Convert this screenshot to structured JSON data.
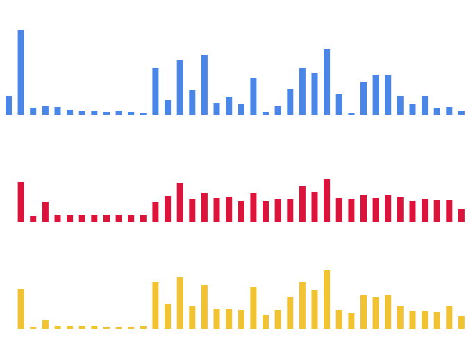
{
  "chart_data": [
    {
      "type": "bar",
      "color": "#4a86e8",
      "grid": false,
      "legend": "none",
      "ylim": [
        0,
        122
      ],
      "values": [
        27,
        122,
        10,
        13,
        11,
        7,
        6,
        5,
        4,
        5,
        4,
        3,
        67,
        21,
        78,
        36,
        86,
        17,
        26,
        15,
        53,
        4,
        12,
        37,
        67,
        60,
        94,
        30,
        2,
        47,
        57,
        57,
        27,
        15,
        27,
        10,
        11,
        5
      ]
    },
    {
      "type": "bar",
      "color": "#dc143c",
      "grid": false,
      "legend": "none",
      "ylim": [
        0,
        62
      ],
      "values": [
        0,
        58,
        9,
        30,
        11,
        11,
        11,
        11,
        11,
        11,
        11,
        11,
        29,
        38,
        57,
        34,
        43,
        35,
        37,
        31,
        43,
        31,
        33,
        33,
        52,
        44,
        62,
        35,
        33,
        40,
        35,
        40,
        36,
        31,
        34,
        32,
        32,
        19
      ]
    },
    {
      "type": "bar",
      "color": "#f1c232",
      "grid": false,
      "legend": "none",
      "ylim": [
        0,
        84
      ],
      "values": [
        0,
        57,
        3,
        12,
        4,
        4,
        4,
        4,
        3,
        3,
        3,
        4,
        67,
        36,
        74,
        33,
        63,
        29,
        29,
        27,
        60,
        20,
        27,
        46,
        67,
        56,
        84,
        27,
        22,
        48,
        45,
        49,
        33,
        26,
        25,
        24,
        33,
        18
      ]
    }
  ]
}
